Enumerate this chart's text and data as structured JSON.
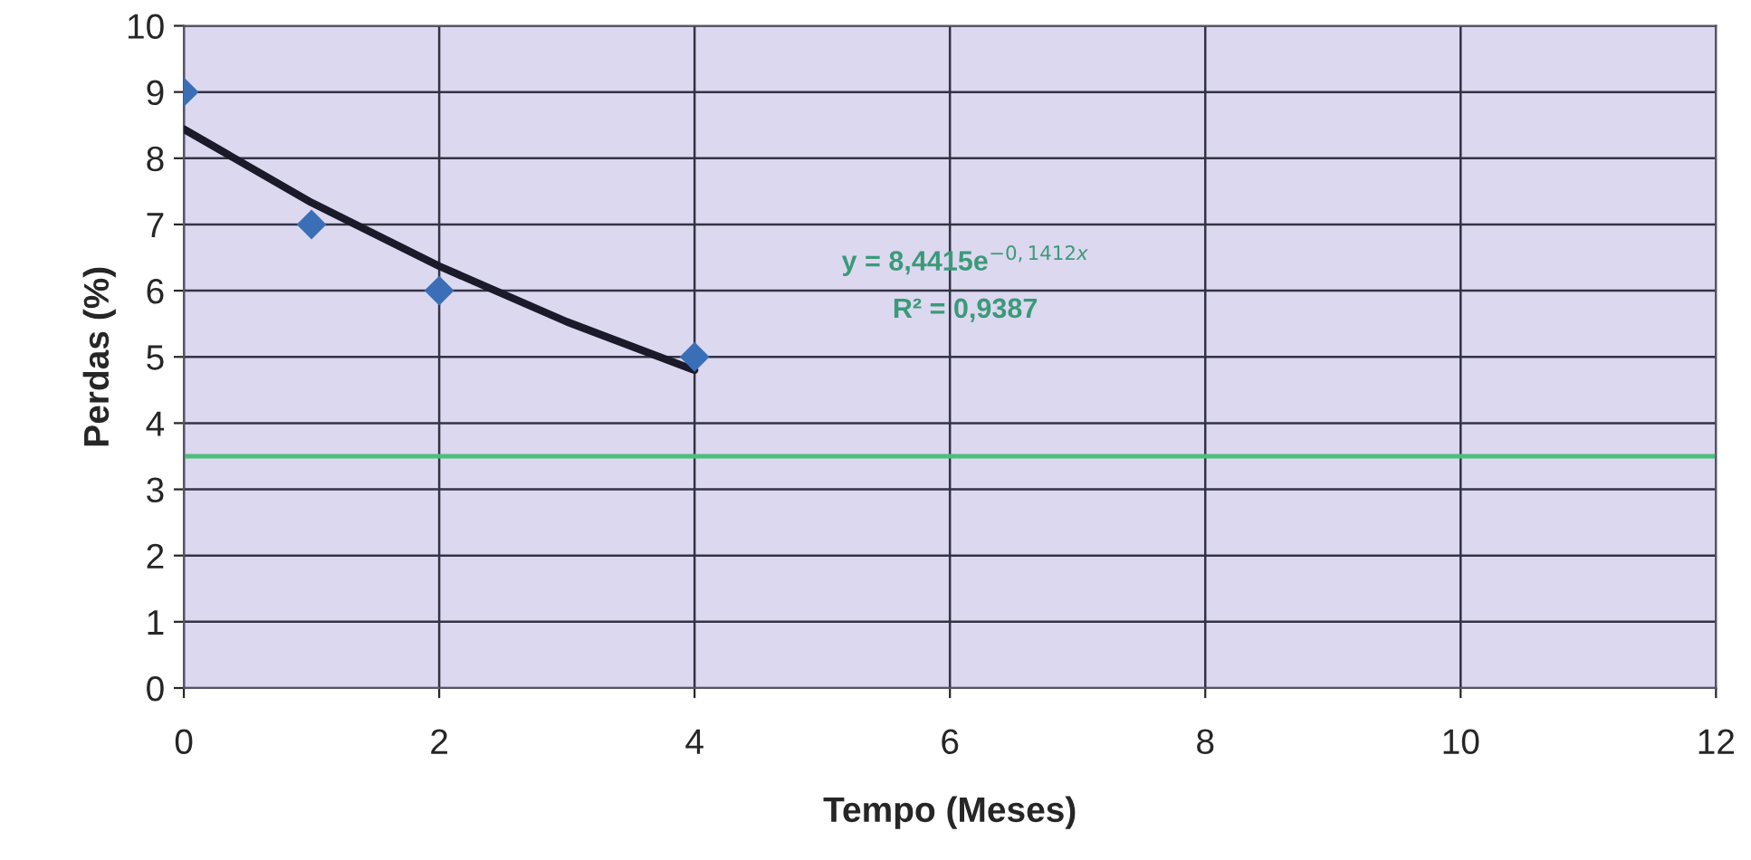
{
  "chart_data": {
    "type": "scatter",
    "xlabel": "Tempo (Meses)",
    "ylabel": "Perdas (%)",
    "series": [
      {
        "color": "#3a6fb8",
        "marker": "diamond",
        "x": [
          0,
          1,
          2,
          4
        ],
        "values": [
          9,
          7,
          6,
          5
        ]
      },
      {
        "type": "line",
        "color": "#1a1a2a",
        "marker": "none",
        "line_style": "solid",
        "x": [
          0,
          1,
          2,
          3,
          4
        ],
        "values": [
          8.44,
          7.33,
          6.37,
          5.53,
          4.8
        ]
      }
    ],
    "ref_lines": [
      {
        "axis": "y",
        "value": 3.5,
        "color": "#4cc07a"
      }
    ],
    "annotations": [
      "y = 8,4415e$^{−0,1412x}$",
      "R² = 0,9387"
    ],
    "xlim": [
      0,
      12
    ],
    "xticks": [
      0,
      2,
      4,
      6,
      8,
      10,
      12
    ],
    "ylim": [
      0,
      10
    ],
    "yticks": [
      0,
      1,
      2,
      3,
      4,
      5,
      6,
      7,
      8,
      9,
      10
    ],
    "grid": true
  }
}
